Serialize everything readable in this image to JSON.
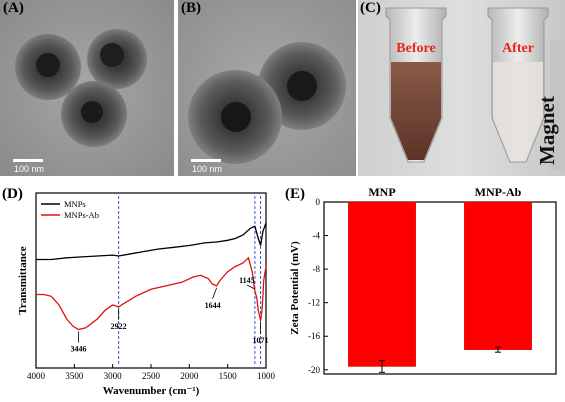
{
  "panels": {
    "A": {
      "letter": "(A)",
      "scale_label": "100 nm"
    },
    "B": {
      "letter": "(B)",
      "scale_label": "100 nm"
    },
    "C": {
      "letter": "(C)",
      "before_label": "Before",
      "after_label": "After",
      "magnet_label": "Magnet"
    },
    "D": {
      "letter": "(D)"
    },
    "E": {
      "letter": "(E)"
    }
  },
  "colors": {
    "mnp": "#000000",
    "mnp_ab": "#dd1111",
    "bar": "#ff0000",
    "guide": "#3355cc"
  },
  "chart_data": [
    {
      "type": "line",
      "panel": "D",
      "xlabel": "Wavenumber (cm⁻¹)",
      "ylabel": "Transmittance",
      "xlim": [
        4000,
        1000
      ],
      "x_reversed": true,
      "xticks": [
        4000,
        3500,
        3000,
        2500,
        2000,
        1500,
        1000
      ],
      "ylim": [
        0,
        1
      ],
      "y_ticks_labeled": false,
      "legend": "top-left",
      "series": [
        {
          "name": "MNPs",
          "color": "#000000",
          "points": [
            [
              4000,
              0.62
            ],
            [
              3800,
              0.62
            ],
            [
              3600,
              0.63
            ],
            [
              3400,
              0.635
            ],
            [
              3200,
              0.64
            ],
            [
              3000,
              0.645
            ],
            [
              2922,
              0.64
            ],
            [
              2800,
              0.65
            ],
            [
              2600,
              0.665
            ],
            [
              2400,
              0.68
            ],
            [
              2200,
              0.69
            ],
            [
              2000,
              0.7
            ],
            [
              1800,
              0.715
            ],
            [
              1644,
              0.72
            ],
            [
              1500,
              0.73
            ],
            [
              1400,
              0.74
            ],
            [
              1300,
              0.76
            ],
            [
              1200,
              0.8
            ],
            [
              1145,
              0.81
            ],
            [
              1100,
              0.74
            ],
            [
              1071,
              0.7
            ],
            [
              1040,
              0.78
            ],
            [
              1000,
              0.83
            ]
          ]
        },
        {
          "name": "MNPs-Ab",
          "color": "#dd1111",
          "points": [
            [
              4000,
              0.42
            ],
            [
              3900,
              0.42
            ],
            [
              3800,
              0.41
            ],
            [
              3700,
              0.36
            ],
            [
              3600,
              0.28
            ],
            [
              3520,
              0.24
            ],
            [
              3446,
              0.22
            ],
            [
              3350,
              0.23
            ],
            [
              3200,
              0.28
            ],
            [
              3100,
              0.33
            ],
            [
              3000,
              0.36
            ],
            [
              2922,
              0.35
            ],
            [
              2850,
              0.37
            ],
            [
              2700,
              0.41
            ],
            [
              2500,
              0.45
            ],
            [
              2300,
              0.47
            ],
            [
              2100,
              0.49
            ],
            [
              1950,
              0.52
            ],
            [
              1850,
              0.53
            ],
            [
              1750,
              0.51
            ],
            [
              1700,
              0.48
            ],
            [
              1644,
              0.47
            ],
            [
              1600,
              0.5
            ],
            [
              1500,
              0.55
            ],
            [
              1400,
              0.58
            ],
            [
              1300,
              0.6
            ],
            [
              1230,
              0.63
            ],
            [
              1180,
              0.55
            ],
            [
              1145,
              0.44
            ],
            [
              1120,
              0.4
            ],
            [
              1100,
              0.33
            ],
            [
              1071,
              0.27
            ],
            [
              1050,
              0.34
            ],
            [
              1030,
              0.5
            ],
            [
              1000,
              0.58
            ]
          ]
        }
      ],
      "annotations": [
        {
          "text": "3446",
          "x": 3446
        },
        {
          "text": "2922",
          "x": 2922
        },
        {
          "text": "1644",
          "x": 1644
        },
        {
          "text": "1145",
          "x": 1145
        },
        {
          "text": "1071",
          "x": 1071
        }
      ],
      "guide_lines_x": [
        2922,
        1145,
        1071
      ]
    },
    {
      "type": "bar",
      "panel": "E",
      "categories": [
        "MNP",
        "MNP-Ab"
      ],
      "values": [
        -19.6,
        -17.6
      ],
      "errors": [
        0.7,
        0.3
      ],
      "ylabel": "Zeta Potential (mV)",
      "ylim": [
        -20.5,
        0
      ],
      "yticks": [
        0,
        -4,
        -8,
        -12,
        -16,
        -20
      ],
      "category_labels_position": "top"
    }
  ]
}
